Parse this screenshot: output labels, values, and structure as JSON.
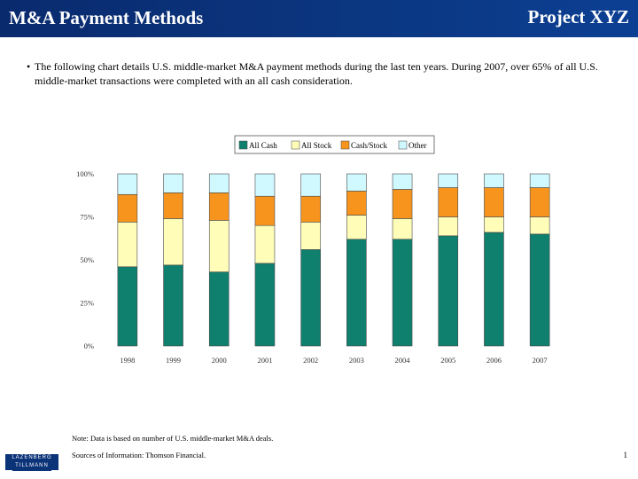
{
  "header": {
    "title": "M&A Payment Methods",
    "project": "Project XYZ"
  },
  "body_text": {
    "bullet": "•",
    "text": "The following chart details U.S. middle-market M&A payment methods during the last ten years.  During 2007, over 65% of all U.S. middle-market transactions were completed with an all cash consideration."
  },
  "chart_data": {
    "type": "bar",
    "stacked": true,
    "categories": [
      "1998",
      "1999",
      "2000",
      "2001",
      "2002",
      "2003",
      "2004",
      "2005",
      "2006",
      "2007"
    ],
    "series": [
      {
        "name": "All Cash",
        "color": "#0f7f6e",
        "values": [
          46,
          47,
          43,
          48,
          56,
          62,
          62,
          64,
          66,
          65
        ]
      },
      {
        "name": "All Stock",
        "color": "#fffdb8",
        "values": [
          26,
          27,
          30,
          22,
          16,
          14,
          12,
          11,
          9,
          10
        ]
      },
      {
        "name": "Cash/Stock",
        "color": "#f7941d",
        "values": [
          16,
          15,
          16,
          17,
          15,
          14,
          17,
          17,
          17,
          17
        ]
      },
      {
        "name": "Other",
        "color": "#cff8ff",
        "values": [
          12,
          11,
          11,
          13,
          13,
          10,
          9,
          8,
          8,
          8
        ]
      }
    ],
    "yticks": [
      "0%",
      "25%",
      "50%",
      "75%",
      "100%"
    ],
    "ylim": [
      0,
      100
    ],
    "legend_position": "top",
    "grid": false
  },
  "footer": {
    "note": "Note:  Data is based on number of U.S. middle-market M&A deals.",
    "sources": "Sources of Information:  Thomson Financial.",
    "page": "1",
    "logo_top": "LAZENBERG",
    "logo_bottom": "TILLMANN"
  }
}
